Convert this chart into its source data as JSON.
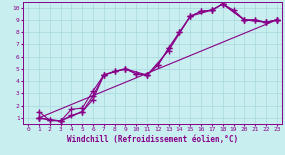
{
  "xlabel": "Windchill (Refroidissement éolien,°C)",
  "bg_color": "#c8eef0",
  "grid_color": "#a8d8dc",
  "line_color": "#880088",
  "spine_color": "#880088",
  "xlim": [
    -0.5,
    23.5
  ],
  "ylim": [
    0.5,
    10.5
  ],
  "xticks": [
    0,
    1,
    2,
    3,
    4,
    5,
    6,
    7,
    8,
    9,
    10,
    11,
    12,
    13,
    14,
    15,
    16,
    17,
    18,
    19,
    20,
    21,
    22,
    23
  ],
  "yticks": [
    1,
    2,
    3,
    4,
    5,
    6,
    7,
    8,
    9,
    10
  ],
  "lines": [
    {
      "x": [
        1,
        2,
        3,
        4,
        5,
        6,
        7,
        8,
        9,
        10,
        11,
        12,
        13,
        14,
        15,
        16,
        17,
        18,
        20,
        21,
        22,
        23
      ],
      "y": [
        1.5,
        0.8,
        0.75,
        1.7,
        1.8,
        3.2,
        4.5,
        4.8,
        5.0,
        4.6,
        4.5,
        5.3,
        6.7,
        8.0,
        9.3,
        9.7,
        9.8,
        10.3,
        9.0,
        9.0,
        8.8,
        9.0
      ]
    },
    {
      "x": [
        1,
        23
      ],
      "y": [
        1.0,
        9.0
      ]
    },
    {
      "x": [
        1,
        2,
        3,
        4,
        5,
        6,
        7,
        8,
        9,
        10,
        11,
        12,
        13,
        14,
        15,
        16,
        17,
        18,
        19,
        20,
        21,
        22,
        23
      ],
      "y": [
        1.0,
        0.8,
        0.75,
        1.2,
        1.5,
        2.5,
        4.5,
        4.8,
        5.0,
        4.6,
        4.5,
        5.3,
        6.7,
        8.0,
        9.3,
        9.7,
        9.8,
        10.3,
        9.8,
        9.0,
        9.0,
        8.8,
        9.0
      ]
    },
    {
      "x": [
        1,
        3,
        5,
        6,
        7,
        9,
        11,
        13,
        15,
        17,
        18,
        20,
        22,
        23
      ],
      "y": [
        1.0,
        0.75,
        1.5,
        2.8,
        4.5,
        5.0,
        4.5,
        6.5,
        9.3,
        9.8,
        10.3,
        9.0,
        8.8,
        9.0
      ]
    }
  ],
  "marker": "+",
  "markersize": 4,
  "markeredgewidth": 1.0,
  "linewidth": 0.8,
  "tick_fontsize": 4.5,
  "label_fontsize": 5.5
}
